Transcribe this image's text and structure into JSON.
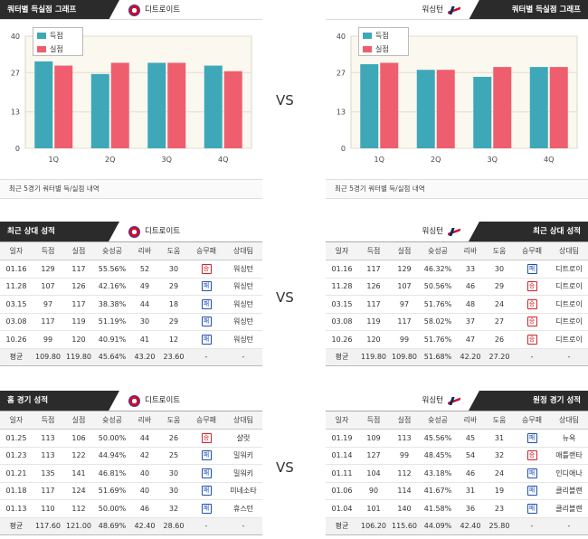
{
  "vs_label": "VS",
  "colors": {
    "scored": "#3ea8b9",
    "allowed": "#ef5e6e",
    "header_dark": "#2b2b2b",
    "win": "#d0232a",
    "loss": "#1f4fb0"
  },
  "quarter_chart": {
    "left": {
      "title": "쿼터별 득실점 그래프",
      "team": "디트로이트",
      "logo": "pistons-logo"
    },
    "right": {
      "title": "쿼터별 득실점 그래프",
      "team": "워싱턴",
      "logo": "wizards-logo"
    },
    "note": "최근 5경기 쿼터별 득/실점 내역",
    "legend": {
      "scored": "득점",
      "allowed": "실점"
    }
  },
  "chart_data": [
    {
      "type": "bar",
      "categories": [
        "1Q",
        "2Q",
        "3Q",
        "4Q"
      ],
      "yticks": [
        0,
        13,
        27,
        40
      ],
      "ylim": [
        0,
        40
      ],
      "grid": true,
      "legend_position": "top-left",
      "series": [
        {
          "name": "득점",
          "values": [
            31,
            26.5,
            30.5,
            29.5
          ]
        },
        {
          "name": "실점",
          "values": [
            29.5,
            30.5,
            30.5,
            27.5
          ]
        }
      ]
    },
    {
      "type": "bar",
      "categories": [
        "1Q",
        "2Q",
        "3Q",
        "4Q"
      ],
      "yticks": [
        0,
        13,
        27,
        40
      ],
      "ylim": [
        0,
        40
      ],
      "grid": true,
      "legend_position": "top-left",
      "series": [
        {
          "name": "득점",
          "values": [
            30,
            28,
            25.5,
            29
          ]
        },
        {
          "name": "실점",
          "values": [
            30.5,
            28,
            29,
            29
          ]
        }
      ]
    }
  ],
  "columns": [
    "일자",
    "득점",
    "실점",
    "슛성공",
    "리바",
    "도움",
    "승무패",
    "상대팀"
  ],
  "recent": {
    "left": {
      "title": "최근 상대 성적",
      "team": "디트로이트",
      "rows": [
        [
          "01.16",
          "129",
          "117",
          "55.56%",
          "52",
          "30",
          "W",
          "워싱턴"
        ],
        [
          "11.28",
          "107",
          "126",
          "42.16%",
          "49",
          "29",
          "L",
          "워싱턴"
        ],
        [
          "03.15",
          "97",
          "117",
          "38.38%",
          "44",
          "18",
          "L",
          "워싱턴"
        ],
        [
          "03.08",
          "117",
          "119",
          "51.19%",
          "30",
          "29",
          "L",
          "워싱턴"
        ],
        [
          "10.26",
          "99",
          "120",
          "40.91%",
          "41",
          "12",
          "L",
          "워싱턴"
        ]
      ],
      "avg": [
        "평균",
        "109.80",
        "119.80",
        "45.64%",
        "43.20",
        "23.60",
        "-",
        "-"
      ]
    },
    "right": {
      "title": "최근 상대 성적",
      "team": "워싱턴",
      "rows": [
        [
          "01.16",
          "117",
          "129",
          "46.32%",
          "33",
          "30",
          "L",
          "디트로이"
        ],
        [
          "11.28",
          "126",
          "107",
          "50.56%",
          "46",
          "29",
          "W",
          "디트로이"
        ],
        [
          "03.15",
          "117",
          "97",
          "51.76%",
          "48",
          "24",
          "W",
          "디트로이"
        ],
        [
          "03.08",
          "119",
          "117",
          "58.02%",
          "37",
          "27",
          "W",
          "디트로이"
        ],
        [
          "10.26",
          "120",
          "99",
          "51.76%",
          "47",
          "26",
          "W",
          "디트로이"
        ]
      ],
      "avg": [
        "평균",
        "119.80",
        "109.80",
        "51.68%",
        "42.20",
        "27.20",
        "-",
        "-"
      ]
    }
  },
  "venue": {
    "left": {
      "title": "홈 경기 성적",
      "team": "디트로이트",
      "rows": [
        [
          "01.25",
          "113",
          "106",
          "50.00%",
          "44",
          "26",
          "W",
          "샬럿"
        ],
        [
          "01.23",
          "113",
          "122",
          "44.94%",
          "42",
          "25",
          "L",
          "밀워키"
        ],
        [
          "01.21",
          "135",
          "141",
          "46.81%",
          "40",
          "30",
          "L",
          "밀워키"
        ],
        [
          "01.18",
          "117",
          "124",
          "51.69%",
          "40",
          "30",
          "L",
          "미네소타"
        ],
        [
          "01.13",
          "110",
          "112",
          "50.00%",
          "46",
          "32",
          "L",
          "휴스턴"
        ]
      ],
      "avg": [
        "평균",
        "117.60",
        "121.00",
        "48.69%",
        "42.40",
        "28.60",
        "-",
        "-"
      ]
    },
    "right": {
      "title": "원정 경기 성적",
      "team": "워싱턴",
      "rows": [
        [
          "01.19",
          "109",
          "113",
          "45.56%",
          "45",
          "31",
          "L",
          "뉴욕"
        ],
        [
          "01.14",
          "127",
          "99",
          "48.45%",
          "54",
          "32",
          "W",
          "애틀랜타"
        ],
        [
          "01.11",
          "104",
          "112",
          "43.18%",
          "46",
          "24",
          "L",
          "인디애나"
        ],
        [
          "01.06",
          "90",
          "114",
          "41.67%",
          "31",
          "19",
          "L",
          "클리블랜"
        ],
        [
          "01.04",
          "101",
          "140",
          "41.58%",
          "36",
          "23",
          "L",
          "클리블랜"
        ]
      ],
      "avg": [
        "평균",
        "106.20",
        "115.60",
        "44.09%",
        "42.40",
        "25.80",
        "-",
        "-"
      ]
    }
  },
  "wl_labels": {
    "W": "승",
    "L": "패"
  }
}
